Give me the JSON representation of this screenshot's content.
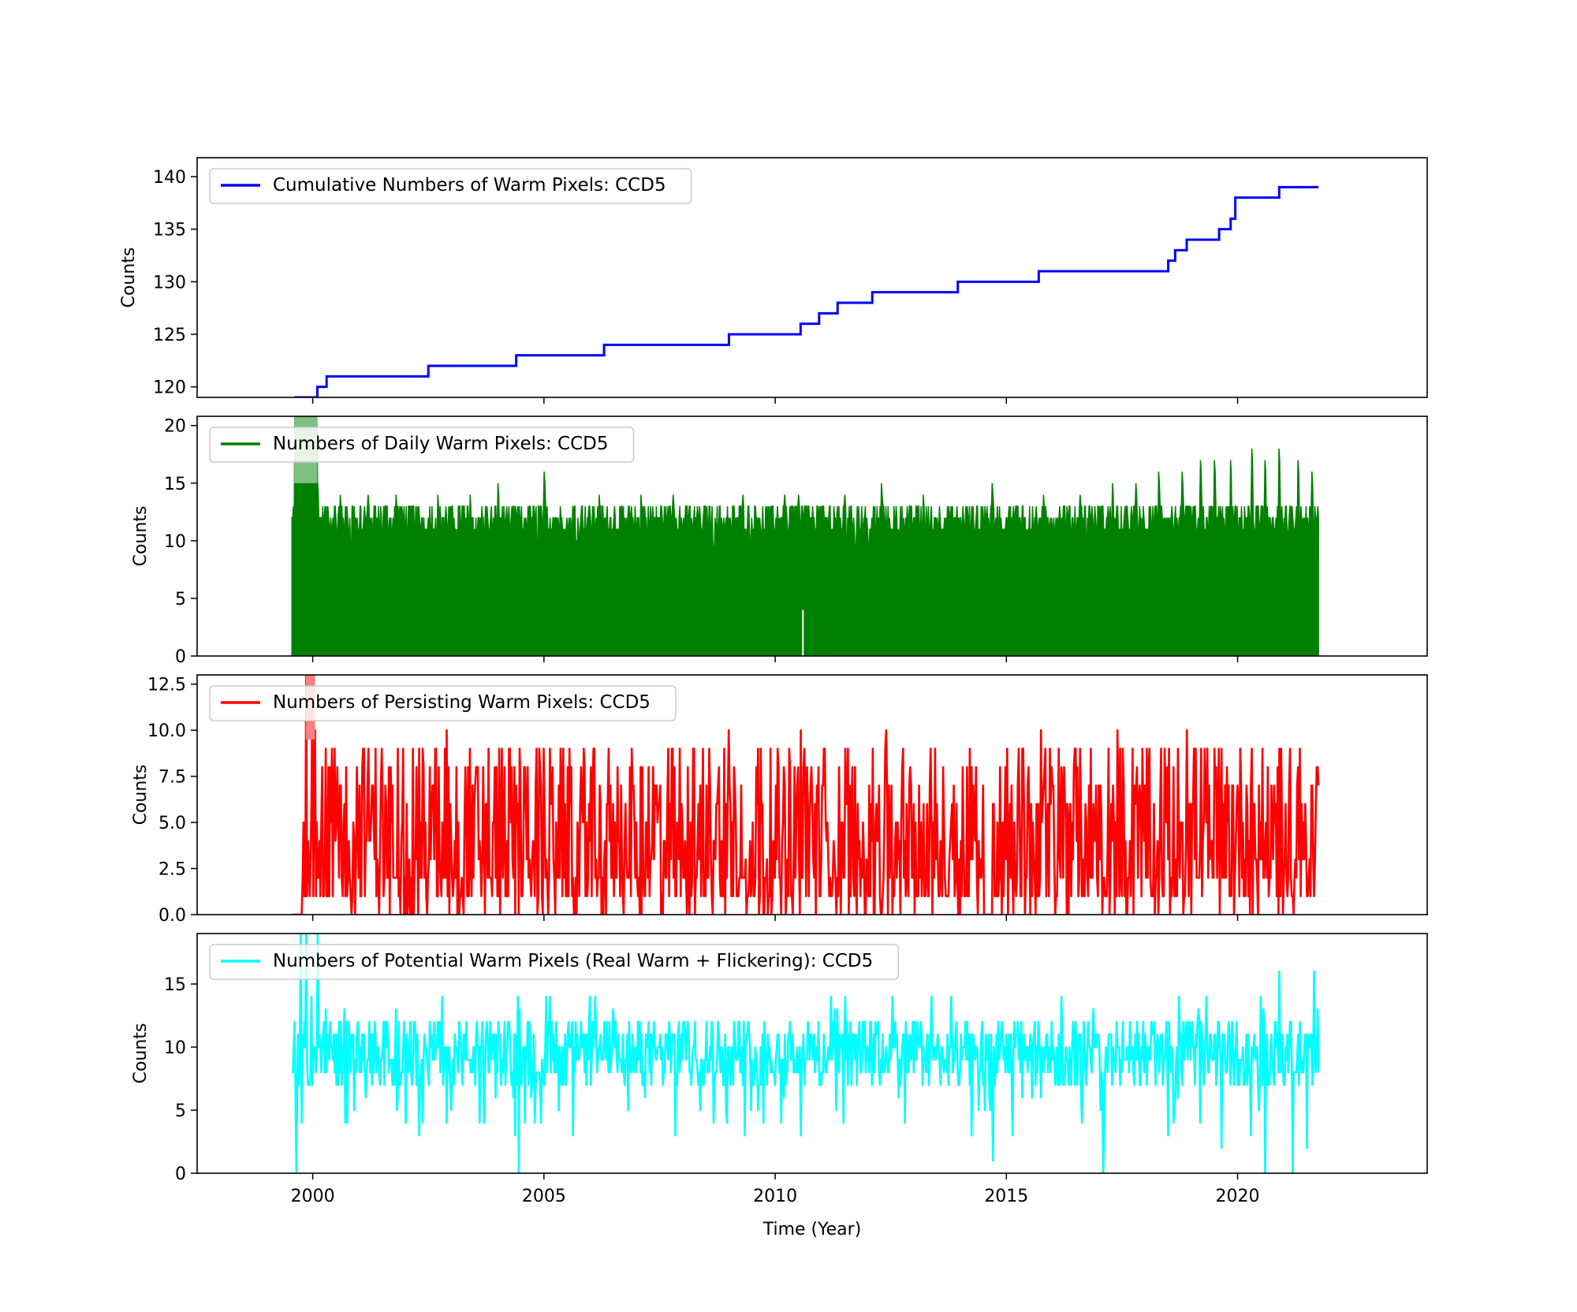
{
  "chart_data": [
    {
      "type": "line",
      "ylabel": "Counts",
      "xlabel": "",
      "xlim": [
        1997.5,
        2024.1
      ],
      "ylim": [
        119,
        141.8
      ],
      "yticks": [
        120,
        125,
        130,
        135,
        140
      ],
      "ytick_labels": [
        "120",
        "125",
        "130",
        "135",
        "140"
      ],
      "legend": "top-left",
      "show_xtick_labels": false,
      "series": [
        {
          "name": "Cumulative Numbers of Warm Pixels: CCD5",
          "color": "#0000ff",
          "style": "step",
          "x": [
            1999.6,
            2000.1,
            2000.3,
            2002.5,
            2004.4,
            2006.3,
            2009.0,
            2010.55,
            2010.95,
            2011.35,
            2012.1,
            2013.95,
            2015.7,
            2018.5,
            2018.65,
            2018.9,
            2019.6,
            2019.85,
            2019.95,
            2020.9,
            2021.75
          ],
          "values": [
            119,
            120,
            121,
            122,
            123,
            124,
            125,
            126,
            127,
            128,
            129,
            130,
            131,
            132,
            133,
            134,
            135,
            136,
            138,
            139,
            139
          ]
        }
      ]
    },
    {
      "type": "line",
      "ylabel": "Counts",
      "xlabel": "",
      "xlim": [
        1997.5,
        2024.1
      ],
      "ylim": [
        0,
        20.8
      ],
      "yticks": [
        0,
        5,
        10,
        15,
        20
      ],
      "ytick_labels": [
        "0",
        "5",
        "10",
        "15",
        "20"
      ],
      "legend": "top-left",
      "show_xtick_labels": false,
      "series": [
        {
          "name": "Numbers of Daily Warm Pixels: CCD5",
          "color": "#008000",
          "style": "dense-daily",
          "x_start": 1999.55,
          "x_end": 2021.75,
          "typical_peak": 12,
          "spikes": [
            {
              "x": 1999.7,
              "y": 21
            },
            {
              "x": 1999.9,
              "y": 21
            },
            {
              "x": 2000.05,
              "y": 21
            },
            {
              "x": 2000.1,
              "y": 15
            },
            {
              "x": 2000.6,
              "y": 14
            },
            {
              "x": 2001.2,
              "y": 14
            },
            {
              "x": 2001.8,
              "y": 14
            },
            {
              "x": 2002.7,
              "y": 14
            },
            {
              "x": 2003.4,
              "y": 14
            },
            {
              "x": 2004.0,
              "y": 15
            },
            {
              "x": 2005.0,
              "y": 16
            },
            {
              "x": 2006.2,
              "y": 14
            },
            {
              "x": 2007.1,
              "y": 14
            },
            {
              "x": 2007.8,
              "y": 14
            },
            {
              "x": 2009.3,
              "y": 14
            },
            {
              "x": 2010.2,
              "y": 14
            },
            {
              "x": 2010.5,
              "y": 14
            },
            {
              "x": 2011.5,
              "y": 14
            },
            {
              "x": 2012.3,
              "y": 15
            },
            {
              "x": 2013.2,
              "y": 14
            },
            {
              "x": 2014.7,
              "y": 15
            },
            {
              "x": 2015.8,
              "y": 14
            },
            {
              "x": 2016.6,
              "y": 14
            },
            {
              "x": 2017.3,
              "y": 15
            },
            {
              "x": 2017.8,
              "y": 15
            },
            {
              "x": 2018.3,
              "y": 16
            },
            {
              "x": 2018.8,
              "y": 16
            },
            {
              "x": 2019.2,
              "y": 17
            },
            {
              "x": 2019.5,
              "y": 17
            },
            {
              "x": 2019.85,
              "y": 17
            },
            {
              "x": 2020.3,
              "y": 18
            },
            {
              "x": 2020.6,
              "y": 17
            },
            {
              "x": 2020.9,
              "y": 18
            },
            {
              "x": 2021.3,
              "y": 17
            },
            {
              "x": 2021.6,
              "y": 16
            }
          ],
          "gaps": [
            {
              "x": 2010.6,
              "y_from": 0,
              "y_to": 4
            }
          ]
        }
      ]
    },
    {
      "type": "line",
      "ylabel": "Counts",
      "xlabel": "",
      "xlim": [
        1997.5,
        2024.1
      ],
      "ylim": [
        0,
        13
      ],
      "yticks": [
        0,
        2.5,
        5,
        7.5,
        10,
        12.5
      ],
      "ytick_labels": [
        "0.0",
        "2.5",
        "5.0",
        "7.5",
        "10.0",
        "12.5"
      ],
      "legend": "top-left",
      "show_xtick_labels": false,
      "series": [
        {
          "name": "Numbers of Persisting Warm Pixels: CCD5",
          "color": "#ff0000",
          "style": "noisy",
          "x_start": 1999.55,
          "x_end": 2021.75,
          "points_per_year": 52,
          "typical_range": [
            0,
            10
          ],
          "spikes": [
            {
              "x": 1999.85,
              "y": 13
            },
            {
              "x": 2000.0,
              "y": 13
            },
            {
              "x": 2000.05,
              "y": 10
            },
            {
              "x": 2002.9,
              "y": 10
            },
            {
              "x": 2009.0,
              "y": 10
            },
            {
              "x": 2010.55,
              "y": 10
            },
            {
              "x": 2012.4,
              "y": 10
            },
            {
              "x": 2015.75,
              "y": 10
            },
            {
              "x": 2017.4,
              "y": 10
            },
            {
              "x": 2018.9,
              "y": 10
            },
            {
              "x": 2020.9,
              "y": 9
            }
          ],
          "flat_zero_segments": [
            [
              1999.55,
              1999.75
            ],
            [
              2014.5,
              2014.7
            ]
          ]
        }
      ]
    },
    {
      "type": "line",
      "ylabel": "Counts",
      "xlabel": "Time (Year)",
      "xlim": [
        1997.5,
        2024.1
      ],
      "ylim": [
        0,
        19
      ],
      "yticks": [
        0,
        5,
        10,
        15
      ],
      "ytick_labels": [
        "0",
        "5",
        "10",
        "15"
      ],
      "xticks": [
        2000,
        2005,
        2010,
        2015,
        2020
      ],
      "xtick_labels": [
        "2000",
        "2005",
        "2010",
        "2015",
        "2020"
      ],
      "legend": "top-left",
      "show_xtick_labels": true,
      "series": [
        {
          "name": "Numbers of Potential Warm Pixels (Real Warm + Flickering): CCD5",
          "color": "#00ffff",
          "style": "noisy",
          "x_start": 1999.55,
          "x_end": 2021.75,
          "points_per_year": 52,
          "typical_range": [
            7,
            12
          ],
          "spikes": [
            {
              "x": 1999.65,
              "y": 0
            },
            {
              "x": 1999.75,
              "y": 19
            },
            {
              "x": 1999.85,
              "y": 19
            },
            {
              "x": 1999.9,
              "y": 7
            },
            {
              "x": 2000.1,
              "y": 19
            },
            {
              "x": 2000.7,
              "y": 4
            },
            {
              "x": 2002.8,
              "y": 14
            },
            {
              "x": 2004.45,
              "y": 0
            },
            {
              "x": 2014.7,
              "y": 1
            },
            {
              "x": 2017.1,
              "y": 0
            },
            {
              "x": 2018.5,
              "y": 3
            },
            {
              "x": 2019.65,
              "y": 2
            },
            {
              "x": 2020.6,
              "y": 0
            },
            {
              "x": 2020.9,
              "y": 16
            },
            {
              "x": 2021.2,
              "y": 0
            },
            {
              "x": 2021.5,
              "y": 2
            },
            {
              "x": 2021.65,
              "y": 16
            }
          ]
        }
      ]
    }
  ]
}
